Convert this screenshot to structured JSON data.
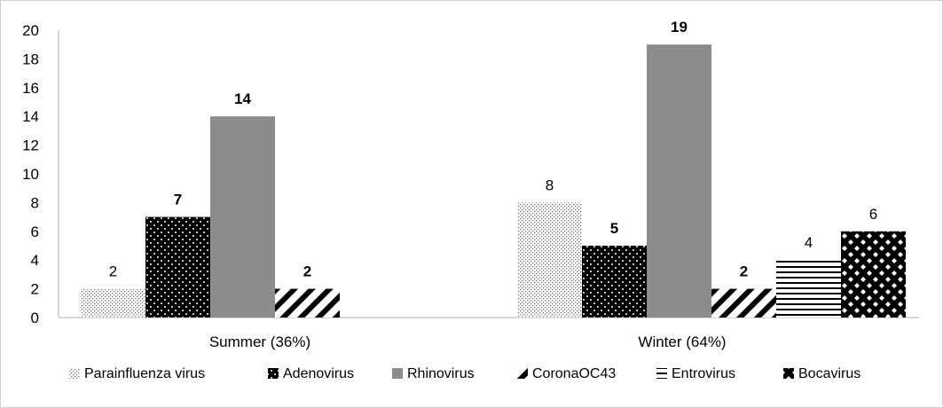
{
  "chart_data": {
    "type": "bar",
    "categories": [
      "Summer (36%)",
      "Winter (64%)"
    ],
    "ylim": [
      0,
      20
    ],
    "ytick_step": 2,
    "grid": false,
    "legend_position": "bottom",
    "series": [
      {
        "name": "Parainfluenza virus",
        "values": [
          2,
          8
        ],
        "pattern": "dots-fine",
        "label_bold": [
          false,
          false
        ]
      },
      {
        "name": "Adenovirus",
        "values": [
          7,
          5
        ],
        "pattern": "dots-dark",
        "label_bold": [
          true,
          true
        ]
      },
      {
        "name": "Rhinovirus",
        "values": [
          14,
          19
        ],
        "pattern": "solid-gray",
        "label_bold": [
          true,
          true
        ]
      },
      {
        "name": "CoronaOC43",
        "values": [
          2,
          2
        ],
        "pattern": "diagonal",
        "label_bold": [
          true,
          true
        ]
      },
      {
        "name": "Entrovirus",
        "values": [
          null,
          4
        ],
        "pattern": "horizontal",
        "label_bold": [
          false,
          false
        ]
      },
      {
        "name": "Bocavirus",
        "values": [
          null,
          6
        ],
        "pattern": "diamonds",
        "label_bold": [
          false,
          false
        ]
      }
    ],
    "colors": {
      "gray": "#8c8c8c",
      "axis": "#b0b0b0",
      "black": "#000000"
    }
  }
}
